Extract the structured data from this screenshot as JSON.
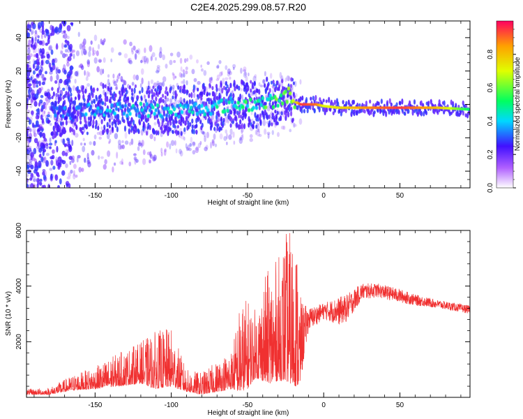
{
  "title": "C2E4.2025.299.08.57.R20",
  "chart_data": [
    {
      "type": "heatmap",
      "xlabel": "Height of straight line (km)",
      "ylabel": "Frequency (Hz)",
      "xlim": [
        -195,
        96
      ],
      "ylim": [
        -50,
        50
      ],
      "xticks": [
        -150,
        -100,
        -50,
        0,
        50
      ],
      "xtick_labels": [
        "-150",
        "-100",
        "-50",
        "0",
        "50"
      ],
      "yticks": [
        -40,
        -20,
        0,
        20,
        40
      ],
      "ytick_labels": [
        "-40",
        "-20",
        "0",
        "20",
        "40"
      ],
      "colorbar": {
        "label": "Normalized spectral amplitude",
        "range": [
          0.0,
          1.0
        ],
        "ticks": [
          0.0,
          0.2,
          0.4,
          0.6,
          0.8
        ],
        "tick_labels": [
          "0.0",
          "0.2",
          "0.4",
          "0.6",
          "0.8"
        ]
      },
      "ridge_frequency_hz": [
        [
          -175,
          -5
        ],
        [
          -150,
          -3
        ],
        [
          -125,
          -3
        ],
        [
          -100,
          -4
        ],
        [
          -75,
          -2
        ],
        [
          -60,
          0
        ],
        [
          -50,
          0
        ],
        [
          -40,
          1
        ],
        [
          -30,
          2
        ],
        [
          -25,
          4
        ],
        [
          -22,
          8
        ],
        [
          -20,
          2
        ],
        [
          -15,
          0
        ],
        [
          -5,
          0
        ],
        [
          0,
          -1
        ],
        [
          10,
          -2
        ],
        [
          25,
          -2
        ],
        [
          50,
          -2
        ],
        [
          75,
          -2
        ],
        [
          96,
          -3
        ]
      ],
      "ridge_amplitude": [
        [
          -175,
          0.3
        ],
        [
          -150,
          0.35
        ],
        [
          -125,
          0.4
        ],
        [
          -100,
          0.4
        ],
        [
          -75,
          0.4
        ],
        [
          -60,
          0.45
        ],
        [
          -50,
          0.5
        ],
        [
          -40,
          0.5
        ],
        [
          -30,
          0.55
        ],
        [
          -25,
          0.55
        ],
        [
          -20,
          0.6
        ],
        [
          -15,
          0.95
        ],
        [
          -5,
          0.9
        ],
        [
          0,
          0.7
        ],
        [
          10,
          0.75
        ],
        [
          25,
          0.85
        ],
        [
          50,
          0.95
        ],
        [
          75,
          0.8
        ],
        [
          96,
          0.5
        ]
      ]
    },
    {
      "type": "line",
      "xlabel": "Height of straight line (km)",
      "ylabel": "SNR (10 * v/v)",
      "xlim": [
        -195,
        96
      ],
      "ylim": [
        0,
        6000
      ],
      "xticks": [
        -150,
        -100,
        -50,
        0,
        50
      ],
      "xtick_labels": [
        "-150",
        "-100",
        "-50",
        "0",
        "50"
      ],
      "yticks": [
        2000,
        4000,
        6000
      ],
      "ytick_labels": [
        "2000",
        "4000",
        "6000"
      ],
      "series": [
        {
          "name": "SNR",
          "color": "#f03030",
          "envelope": [
            [
              -195,
              100,
              300
            ],
            [
              -180,
              100,
              350
            ],
            [
              -165,
              250,
              800
            ],
            [
              -150,
              300,
              1100
            ],
            [
              -135,
              400,
              1600
            ],
            [
              -120,
              500,
              2000
            ],
            [
              -110,
              300,
              2400
            ],
            [
              -100,
              400,
              2500
            ],
            [
              -90,
              200,
              1000
            ],
            [
              -80,
              100,
              900
            ],
            [
              -70,
              200,
              1300
            ],
            [
              -60,
              300,
              1800
            ],
            [
              -55,
              200,
              3400
            ],
            [
              -50,
              300,
              3600
            ],
            [
              -45,
              700,
              3200
            ],
            [
              -40,
              600,
              4200
            ],
            [
              -35,
              500,
              4800
            ],
            [
              -30,
              600,
              5000
            ],
            [
              -25,
              600,
              6000
            ],
            [
              -22,
              500,
              6000
            ],
            [
              -18,
              400,
              5900
            ],
            [
              -15,
              500,
              3500
            ],
            [
              -10,
              2400,
              3200
            ],
            [
              0,
              2800,
              3400
            ],
            [
              10,
              2600,
              3600
            ],
            [
              15,
              2700,
              3700
            ],
            [
              25,
              3500,
              4100
            ],
            [
              35,
              3600,
              4100
            ],
            [
              50,
              3400,
              3900
            ],
            [
              60,
              3300,
              3700
            ],
            [
              75,
              3200,
              3500
            ],
            [
              96,
              3000,
              3300
            ]
          ]
        }
      ]
    }
  ]
}
